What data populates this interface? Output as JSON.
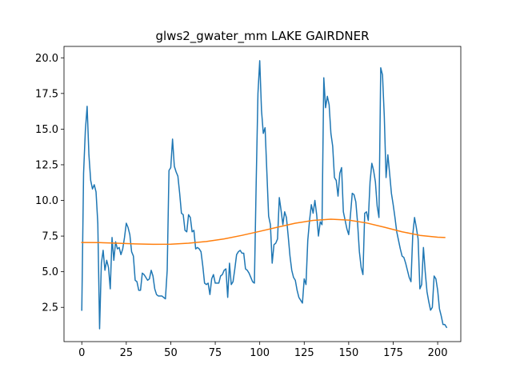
{
  "chart_data": {
    "type": "line",
    "title": "glws2_gwater_mm LAKE GAIRDNER",
    "xlabel": "",
    "ylabel": "",
    "xlim": [
      -10,
      213
    ],
    "ylim": [
      0.1,
      20.8
    ],
    "x_ticks": [
      0,
      25,
      50,
      75,
      100,
      125,
      150,
      175,
      200
    ],
    "x_tick_labels": [
      "0",
      "25",
      "50",
      "75",
      "100",
      "125",
      "150",
      "175",
      "200"
    ],
    "y_ticks": [
      2.5,
      5.0,
      7.5,
      10.0,
      12.5,
      15.0,
      17.5,
      20.0
    ],
    "y_tick_labels": [
      "2.5",
      "5.0",
      "7.5",
      "10.0",
      "12.5",
      "15.0",
      "17.5",
      "20.0"
    ],
    "grid": false,
    "legend": "none",
    "series": [
      {
        "color": "#1f77b4",
        "points": [
          [
            0,
            2.3
          ],
          [
            1,
            11.9
          ],
          [
            2,
            14.9
          ],
          [
            3,
            16.6
          ],
          [
            4,
            13.2
          ],
          [
            5,
            11.4
          ],
          [
            6,
            10.8
          ],
          [
            7,
            11.1
          ],
          [
            8,
            10.6
          ],
          [
            9,
            8.4
          ],
          [
            10,
            1.0
          ],
          [
            11,
            5.6
          ],
          [
            12,
            6.5
          ],
          [
            13,
            5.1
          ],
          [
            14,
            5.8
          ],
          [
            15,
            5.3
          ],
          [
            16,
            3.8
          ],
          [
            17,
            7.4
          ],
          [
            18,
            5.8
          ],
          [
            19,
            7.1
          ],
          [
            20,
            6.6
          ],
          [
            21,
            6.7
          ],
          [
            22,
            6.2
          ],
          [
            23,
            6.6
          ],
          [
            24,
            7.4
          ],
          [
            25,
            8.4
          ],
          [
            26,
            8.1
          ],
          [
            27,
            7.6
          ],
          [
            28,
            6.4
          ],
          [
            29,
            6.1
          ],
          [
            30,
            4.4
          ],
          [
            31,
            4.3
          ],
          [
            32,
            3.7
          ],
          [
            33,
            3.7
          ],
          [
            34,
            4.9
          ],
          [
            35,
            4.8
          ],
          [
            36,
            4.6
          ],
          [
            37,
            4.4
          ],
          [
            38,
            4.5
          ],
          [
            39,
            5.1
          ],
          [
            40,
            4.7
          ],
          [
            41,
            3.8
          ],
          [
            42,
            3.4
          ],
          [
            43,
            3.3
          ],
          [
            44,
            3.3
          ],
          [
            45,
            3.3
          ],
          [
            46,
            3.2
          ],
          [
            47,
            3.1
          ],
          [
            48,
            5.1
          ],
          [
            49,
            12.1
          ],
          [
            50,
            12.3
          ],
          [
            51,
            14.3
          ],
          [
            52,
            12.4
          ],
          [
            53,
            12.0
          ],
          [
            54,
            11.7
          ],
          [
            55,
            10.5
          ],
          [
            56,
            9.1
          ],
          [
            57,
            9.0
          ],
          [
            58,
            7.9
          ],
          [
            59,
            7.8
          ],
          [
            60,
            9.0
          ],
          [
            61,
            8.8
          ],
          [
            62,
            7.8
          ],
          [
            63,
            7.9
          ],
          [
            64,
            6.6
          ],
          [
            65,
            6.7
          ],
          [
            66,
            6.6
          ],
          [
            67,
            6.4
          ],
          [
            68,
            5.4
          ],
          [
            69,
            4.2
          ],
          [
            70,
            4.1
          ],
          [
            71,
            4.2
          ],
          [
            72,
            3.4
          ],
          [
            73,
            4.5
          ],
          [
            74,
            4.8
          ],
          [
            75,
            4.2
          ],
          [
            76,
            4.2
          ],
          [
            77,
            4.2
          ],
          [
            78,
            4.7
          ],
          [
            79,
            4.8
          ],
          [
            80,
            5.1
          ],
          [
            81,
            5.2
          ],
          [
            82,
            3.2
          ],
          [
            83,
            5.6
          ],
          [
            84,
            4.1
          ],
          [
            85,
            4.3
          ],
          [
            86,
            5.2
          ],
          [
            87,
            6.2
          ],
          [
            88,
            6.4
          ],
          [
            89,
            6.5
          ],
          [
            90,
            6.3
          ],
          [
            91,
            6.3
          ],
          [
            92,
            5.2
          ],
          [
            93,
            5.1
          ],
          [
            94,
            4.9
          ],
          [
            95,
            4.6
          ],
          [
            96,
            4.3
          ],
          [
            97,
            4.2
          ],
          [
            98,
            11.2
          ],
          [
            99,
            17.5
          ],
          [
            100,
            19.8
          ],
          [
            101,
            16.3
          ],
          [
            102,
            14.7
          ],
          [
            103,
            15.1
          ],
          [
            104,
            12.0
          ],
          [
            105,
            8.9
          ],
          [
            106,
            8.3
          ],
          [
            107,
            5.6
          ],
          [
            108,
            6.9
          ],
          [
            109,
            7.0
          ],
          [
            110,
            7.3
          ],
          [
            111,
            10.2
          ],
          [
            112,
            9.3
          ],
          [
            113,
            8.3
          ],
          [
            114,
            9.2
          ],
          [
            115,
            8.8
          ],
          [
            116,
            7.5
          ],
          [
            117,
            6.1
          ],
          [
            118,
            5.1
          ],
          [
            119,
            4.6
          ],
          [
            120,
            4.4
          ],
          [
            121,
            3.7
          ],
          [
            122,
            3.2
          ],
          [
            123,
            3.0
          ],
          [
            124,
            2.8
          ],
          [
            125,
            4.5
          ],
          [
            126,
            4.1
          ],
          [
            127,
            7.2
          ],
          [
            128,
            8.6
          ],
          [
            129,
            9.7
          ],
          [
            130,
            9.1
          ],
          [
            131,
            10.0
          ],
          [
            132,
            9.0
          ],
          [
            133,
            7.5
          ],
          [
            134,
            8.5
          ],
          [
            135,
            8.3
          ],
          [
            136,
            18.6
          ],
          [
            137,
            16.5
          ],
          [
            138,
            17.3
          ],
          [
            139,
            16.7
          ],
          [
            140,
            14.7
          ],
          [
            141,
            13.8
          ],
          [
            142,
            11.6
          ],
          [
            143,
            11.4
          ],
          [
            144,
            10.3
          ],
          [
            145,
            11.9
          ],
          [
            146,
            12.3
          ],
          [
            147,
            9.2
          ],
          [
            148,
            8.6
          ],
          [
            149,
            8.0
          ],
          [
            150,
            7.6
          ],
          [
            151,
            9.0
          ],
          [
            152,
            10.5
          ],
          [
            153,
            10.4
          ],
          [
            154,
            9.9
          ],
          [
            155,
            8.4
          ],
          [
            156,
            6.4
          ],
          [
            157,
            5.3
          ],
          [
            158,
            4.8
          ],
          [
            159,
            9.1
          ],
          [
            160,
            9.2
          ],
          [
            161,
            8.6
          ],
          [
            162,
            11.3
          ],
          [
            163,
            12.6
          ],
          [
            164,
            12.1
          ],
          [
            165,
            11.3
          ],
          [
            166,
            9.6
          ],
          [
            167,
            8.8
          ],
          [
            168,
            19.3
          ],
          [
            169,
            18.8
          ],
          [
            170,
            15.9
          ],
          [
            171,
            11.6
          ],
          [
            172,
            13.2
          ],
          [
            173,
            11.9
          ],
          [
            174,
            10.5
          ],
          [
            175,
            9.7
          ],
          [
            176,
            8.8
          ],
          [
            177,
            7.8
          ],
          [
            178,
            7.2
          ],
          [
            179,
            6.6
          ],
          [
            180,
            6.1
          ],
          [
            181,
            6.0
          ],
          [
            182,
            5.6
          ],
          [
            183,
            5.1
          ],
          [
            184,
            4.6
          ],
          [
            185,
            4.3
          ],
          [
            186,
            7.6
          ],
          [
            187,
            8.8
          ],
          [
            188,
            8.1
          ],
          [
            189,
            7.3
          ],
          [
            190,
            3.8
          ],
          [
            191,
            4.1
          ],
          [
            192,
            6.7
          ],
          [
            193,
            5.0
          ],
          [
            194,
            3.6
          ],
          [
            195,
            2.9
          ],
          [
            196,
            2.3
          ],
          [
            197,
            2.5
          ],
          [
            198,
            4.7
          ],
          [
            199,
            4.5
          ],
          [
            200,
            3.7
          ],
          [
            201,
            2.4
          ],
          [
            202,
            1.9
          ],
          [
            203,
            1.3
          ],
          [
            204,
            1.3
          ],
          [
            205,
            1.1
          ]
        ]
      },
      {
        "color": "#ff7f0e",
        "points": [
          [
            0,
            7.05
          ],
          [
            10,
            7.04
          ],
          [
            20,
            7.0
          ],
          [
            30,
            6.95
          ],
          [
            40,
            6.92
          ],
          [
            50,
            6.93
          ],
          [
            60,
            7.0
          ],
          [
            70,
            7.12
          ],
          [
            80,
            7.3
          ],
          [
            90,
            7.55
          ],
          [
            100,
            7.83
          ],
          [
            110,
            8.12
          ],
          [
            120,
            8.4
          ],
          [
            130,
            8.6
          ],
          [
            140,
            8.68
          ],
          [
            150,
            8.62
          ],
          [
            160,
            8.42
          ],
          [
            170,
            8.12
          ],
          [
            180,
            7.8
          ],
          [
            190,
            7.55
          ],
          [
            200,
            7.42
          ],
          [
            204,
            7.4
          ]
        ]
      }
    ]
  }
}
